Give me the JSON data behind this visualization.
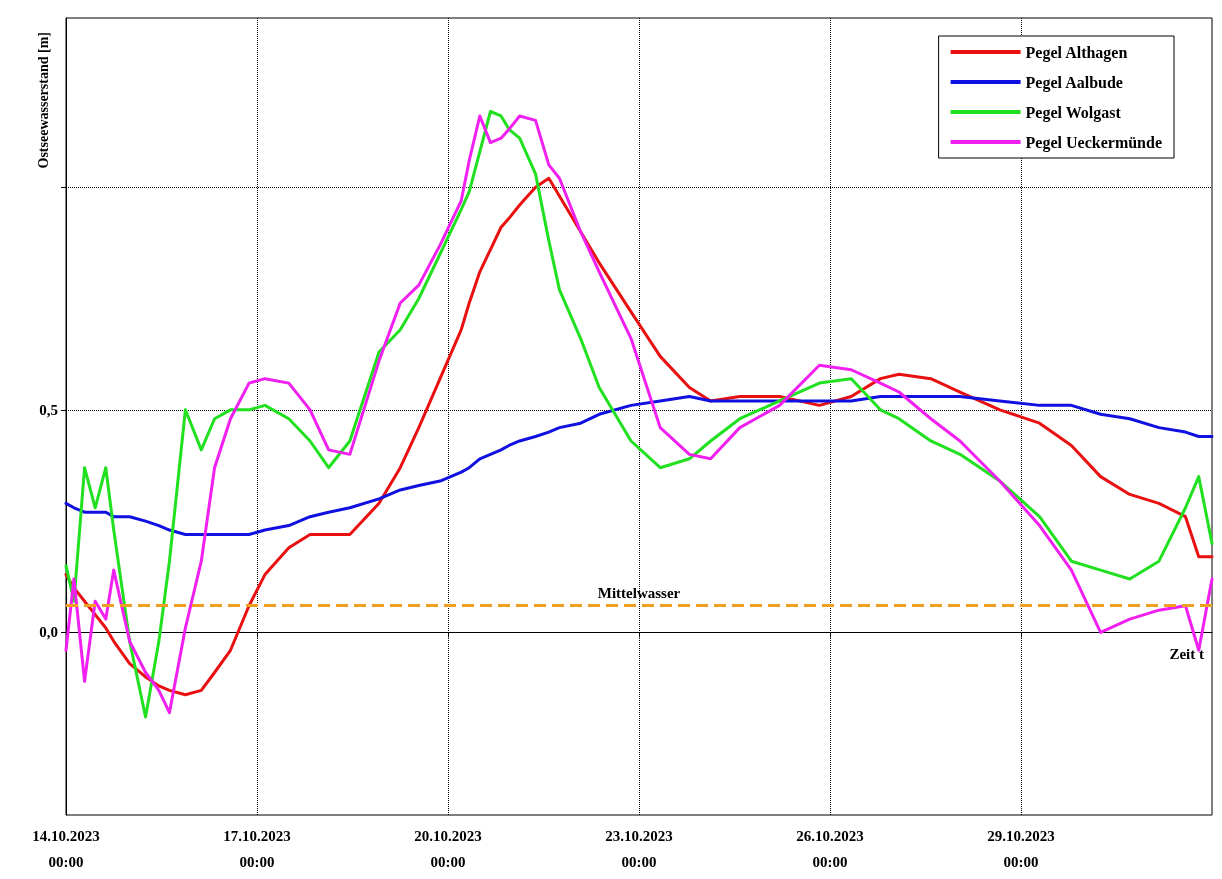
{
  "chart_data": {
    "type": "line",
    "ylabel": "Ostseewasserstand [m]",
    "xlabel": "Zeit t",
    "x": [
      "2023-10-14T00:00",
      "2023-10-14T03:00",
      "2023-10-14T07:00",
      "2023-10-14T11:00",
      "2023-10-14T15:00",
      "2023-10-14T18:00",
      "2023-10-15T00:00",
      "2023-10-15T06:00",
      "2023-10-15T11:00",
      "2023-10-15T15:00",
      "2023-10-15T21:00",
      "2023-10-16T03:00",
      "2023-10-16T08:00",
      "2023-10-16T14:00",
      "2023-10-16T21:00",
      "2023-10-17T03:00",
      "2023-10-17T12:00",
      "2023-10-17T20:00",
      "2023-10-18T03:00",
      "2023-10-18T11:00",
      "2023-10-18T22:00",
      "2023-10-19T06:00",
      "2023-10-19T13:00",
      "2023-10-19T21:00",
      "2023-10-20T05:00",
      "2023-10-20T08:00",
      "2023-10-20T12:00",
      "2023-10-20T16:00",
      "2023-10-20T20:00",
      "2023-10-20T23:00",
      "2023-10-21T03:00",
      "2023-10-21T09:00",
      "2023-10-21T14:00",
      "2023-10-21T18:00",
      "2023-10-22T02:00",
      "2023-10-22T09:00",
      "2023-10-22T21:00",
      "2023-10-23T08:00",
      "2023-10-23T19:00",
      "2023-10-24T03:00",
      "2023-10-24T14:00",
      "2023-10-25T05:00",
      "2023-10-25T20:00",
      "2023-10-26T08:00",
      "2023-10-26T19:00",
      "2023-10-27T02:00",
      "2023-10-27T14:00",
      "2023-10-28T01:00",
      "2023-10-28T16:00",
      "2023-10-29T07:00",
      "2023-10-29T19:00",
      "2023-10-30T06:00",
      "2023-10-30T17:00",
      "2023-10-31T04:00",
      "2023-10-31T14:00",
      "2023-10-31T19:00",
      "2023-11-01T00:00"
    ],
    "series": [
      {
        "name": "Pegel Althagen",
        "color": "#e81010",
        "values": [
          0.13,
          0.1,
          0.07,
          0.04,
          0.01,
          -0.02,
          -0.07,
          -0.1,
          -0.12,
          -0.13,
          -0.14,
          -0.13,
          -0.09,
          -0.04,
          0.06,
          0.13,
          0.19,
          0.22,
          0.22,
          0.22,
          0.29,
          0.37,
          0.46,
          0.57,
          0.68,
          0.74,
          0.81,
          0.86,
          0.91,
          0.93,
          0.96,
          1.0,
          1.02,
          0.98,
          0.9,
          0.83,
          0.72,
          0.62,
          0.55,
          0.52,
          0.53,
          0.53,
          0.51,
          0.53,
          0.57,
          0.58,
          0.57,
          0.54,
          0.5,
          0.47,
          0.42,
          0.35,
          0.31,
          0.29,
          0.26,
          0.17,
          0.17
        ]
      },
      {
        "name": "Pegel Aalbude",
        "color": "#1010e0",
        "values": [
          0.29,
          0.28,
          0.27,
          0.27,
          0.27,
          0.26,
          0.26,
          0.25,
          0.24,
          0.23,
          0.22,
          0.22,
          0.22,
          0.22,
          0.22,
          0.23,
          0.24,
          0.26,
          0.27,
          0.28,
          0.3,
          0.32,
          0.33,
          0.34,
          0.36,
          0.37,
          0.39,
          0.4,
          0.41,
          0.42,
          0.43,
          0.44,
          0.45,
          0.46,
          0.47,
          0.49,
          0.51,
          0.52,
          0.53,
          0.52,
          0.52,
          0.52,
          0.52,
          0.52,
          0.53,
          0.53,
          0.53,
          0.53,
          0.52,
          0.51,
          0.51,
          0.49,
          0.48,
          0.46,
          0.45,
          0.44,
          0.44
        ]
      },
      {
        "name": "Pegel Wolgast",
        "color": "#20e020",
        "values": [
          0.15,
          0.07,
          0.37,
          0.28,
          0.37,
          0.23,
          -0.02,
          -0.19,
          -0.02,
          0.16,
          0.5,
          0.41,
          0.48,
          0.5,
          0.5,
          0.51,
          0.48,
          0.43,
          0.37,
          0.43,
          0.63,
          0.68,
          0.75,
          0.85,
          0.95,
          0.99,
          1.08,
          1.17,
          1.16,
          1.13,
          1.11,
          1.03,
          0.88,
          0.77,
          0.66,
          0.55,
          0.43,
          0.37,
          0.39,
          0.43,
          0.48,
          0.52,
          0.56,
          0.57,
          0.5,
          0.48,
          0.43,
          0.4,
          0.34,
          0.26,
          0.16,
          0.14,
          0.12,
          0.16,
          0.28,
          0.35,
          0.2
        ]
      },
      {
        "name": "Pegel Ueckermünde",
        "color": "#f020f0",
        "values": [
          -0.04,
          0.12,
          -0.11,
          0.07,
          0.03,
          0.14,
          -0.02,
          -0.09,
          -0.13,
          -0.18,
          0.01,
          0.16,
          0.37,
          0.48,
          0.56,
          0.57,
          0.56,
          0.5,
          0.41,
          0.4,
          0.61,
          0.74,
          0.78,
          0.87,
          0.97,
          1.06,
          1.16,
          1.1,
          1.11,
          1.13,
          1.16,
          1.15,
          1.05,
          1.02,
          0.9,
          0.81,
          0.66,
          0.46,
          0.4,
          0.39,
          0.46,
          0.51,
          0.6,
          0.59,
          0.56,
          0.54,
          0.48,
          0.43,
          0.34,
          0.24,
          0.14,
          0.0,
          0.03,
          0.05,
          0.06,
          -0.04,
          0.12
        ]
      }
    ],
    "ref_lines": [
      {
        "axis": "y",
        "value": 0.06,
        "label": "Mittelwasser",
        "color": "#f0a020",
        "line_style": "dashed"
      }
    ],
    "xlim": [
      "2023-10-14T00:00",
      "2023-11-01T00:00"
    ],
    "xticks": [
      {
        "value": "2023-10-14T00:00",
        "label": "14.10.2023\n00:00"
      },
      {
        "value": "2023-10-17T00:00",
        "label": "17.10.2023\n00:00"
      },
      {
        "value": "2023-10-20T00:00",
        "label": "20.10.2023\n00:00"
      },
      {
        "value": "2023-10-23T00:00",
        "label": "23.10.2023\n00:00"
      },
      {
        "value": "2023-10-26T00:00",
        "label": "26.10.2023\n00:00"
      },
      {
        "value": "2023-10-29T00:00",
        "label": "29.10.2023\n00:00"
      }
    ],
    "ylim": [
      -0.41,
      1.38
    ],
    "yticks": [
      {
        "value": 0,
        "label": "0,0"
      },
      {
        "value": 0.5,
        "label": "0,5"
      },
      {
        "value": 1,
        "label": null
      }
    ],
    "grid": true,
    "legend": "top right",
    "marker": "none",
    "line_style": "solid"
  }
}
